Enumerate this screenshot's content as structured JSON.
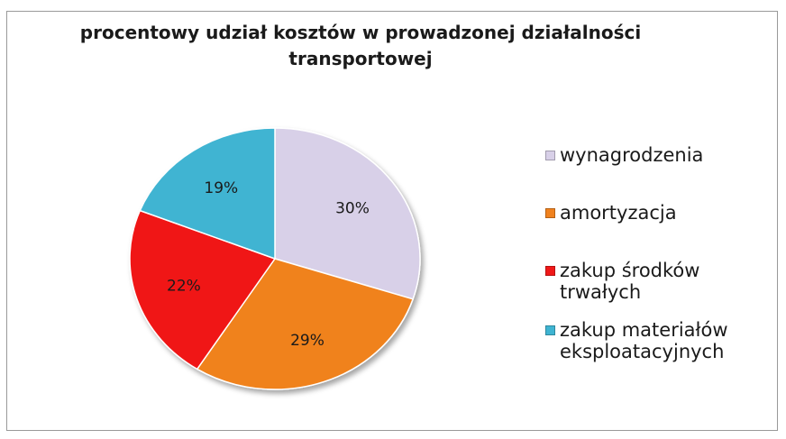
{
  "chart_data": {
    "type": "pie",
    "title_lines": [
      "procentowy udział kosztów w prowadzonej działalności",
      "transportowej"
    ],
    "categories": [
      "wynagrodzenia",
      "amortyzacja",
      "zakup środków trwałych",
      "zakup materiałów eksploatacyjnych"
    ],
    "values": [
      30,
      29,
      22,
      19
    ],
    "value_labels": [
      "30%",
      "29%",
      "22%",
      "19%"
    ],
    "colors": [
      "#d8d0e8",
      "#f0821e",
      "#f01818",
      "#3fb4d2"
    ],
    "legend_lines": [
      [
        "wynagrodzenia"
      ],
      [
        "amortyzacja"
      ],
      [
        "zakup środków",
        "trwałych"
      ],
      [
        "zakup materiałów",
        "eksploatacyjnych"
      ]
    ],
    "legend_placement": "right",
    "start_angle": "12 o'clock, clockwise"
  }
}
